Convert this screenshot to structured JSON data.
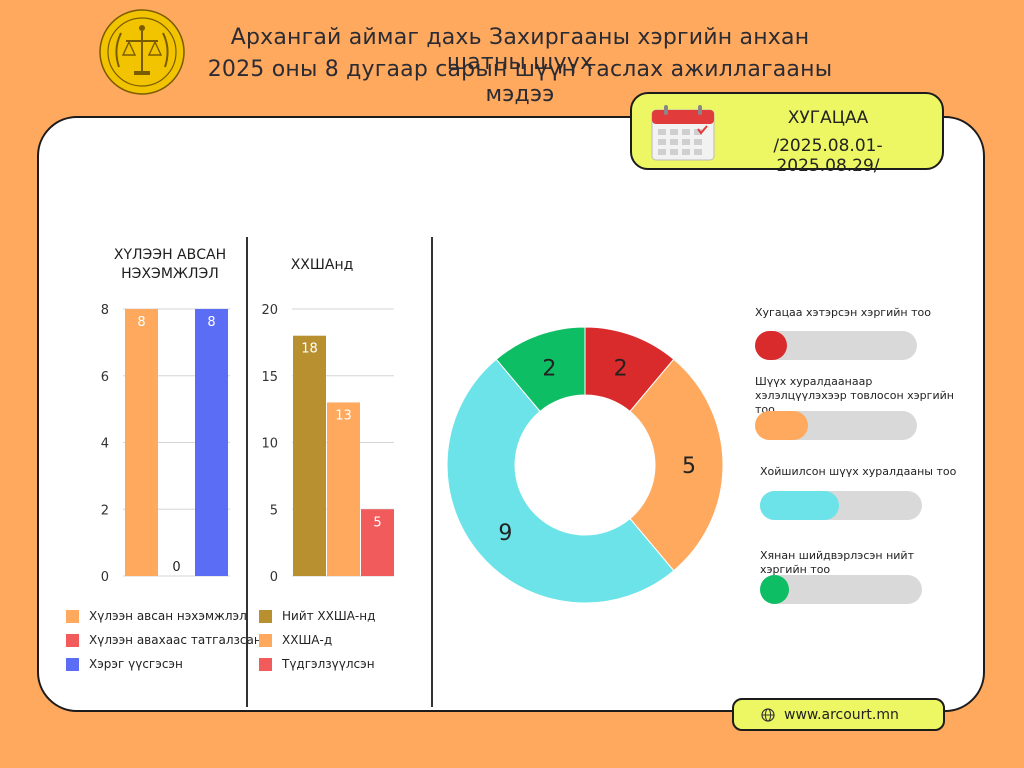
{
  "header": {
    "title_line1": "Архангай аймаг дахь Захиргааны хэргийн анхан шатны шүүх",
    "title_line2": "2025 оны 8 дугаар сарын шүүн таслах ажиллагааны мэдээ"
  },
  "period": {
    "label": "ХУГАЦАА",
    "range": "/2025.08.01-2025.08.29/"
  },
  "colors": {
    "background": "#FFA95E",
    "panel": "#FFFFFF",
    "accent_yellow": "#ECF763",
    "orange": "#FFA95E",
    "red": "#F25B5B",
    "blue": "#5B6CF5",
    "olive": "#B8902F",
    "teal": "#6BE3E8",
    "green": "#0EBE64",
    "dark_red": "#D92B2B"
  },
  "chart_data": [
    {
      "type": "bar",
      "title": "ХҮЛЭЭН АВСАН НЭХЭМЖЛЭЛ",
      "ylim": [
        0,
        8
      ],
      "yticks": [
        0,
        2,
        4,
        6,
        8
      ],
      "grid": true,
      "legend_position": "bottom",
      "series": [
        {
          "name": "Хүлээн авсан нэхэмжлэл",
          "value": 8,
          "color": "#FFA95E"
        },
        {
          "name": "Хүлээн авахаас татгалзсан",
          "value": 0,
          "color": "#F25B5B"
        },
        {
          "name": "Хэрэг үүсгэсэн",
          "value": 8,
          "color": "#5B6CF5"
        }
      ]
    },
    {
      "type": "bar",
      "title": "ХХШАнд",
      "ylim": [
        0,
        20
      ],
      "yticks": [
        0,
        5,
        10,
        15,
        20
      ],
      "grid": true,
      "legend_position": "bottom",
      "series": [
        {
          "name": "Нийт ХХША-нд",
          "value": 18,
          "color": "#B8902F"
        },
        {
          "name": "ХХША-д",
          "value": 13,
          "color": "#FFA95E"
        },
        {
          "name": "Түдгэлзүүлсэн",
          "value": 5,
          "color": "#F25B5B"
        }
      ]
    },
    {
      "type": "pie",
      "donut": true,
      "legend_position": "right",
      "slices": [
        {
          "label": "Хугацаа хэтэрсэн хэргийн тоо",
          "value": 2,
          "color": "#D92B2B"
        },
        {
          "label": "Шүүх хуралдаанаар хэлэлцүүлэхээр товлосон хэргийн тоо",
          "value": 5,
          "color": "#FFA95E"
        },
        {
          "label": "Хойшилсон шүүх хуралдааны тоо",
          "value": 9,
          "color": "#6BE3E8"
        },
        {
          "label": "Хянан шийдвэрлэсэн нийт хэргийн тоо",
          "value": 2,
          "color": "#0EBE64"
        }
      ]
    }
  ],
  "website": "www.arcourt.mn"
}
